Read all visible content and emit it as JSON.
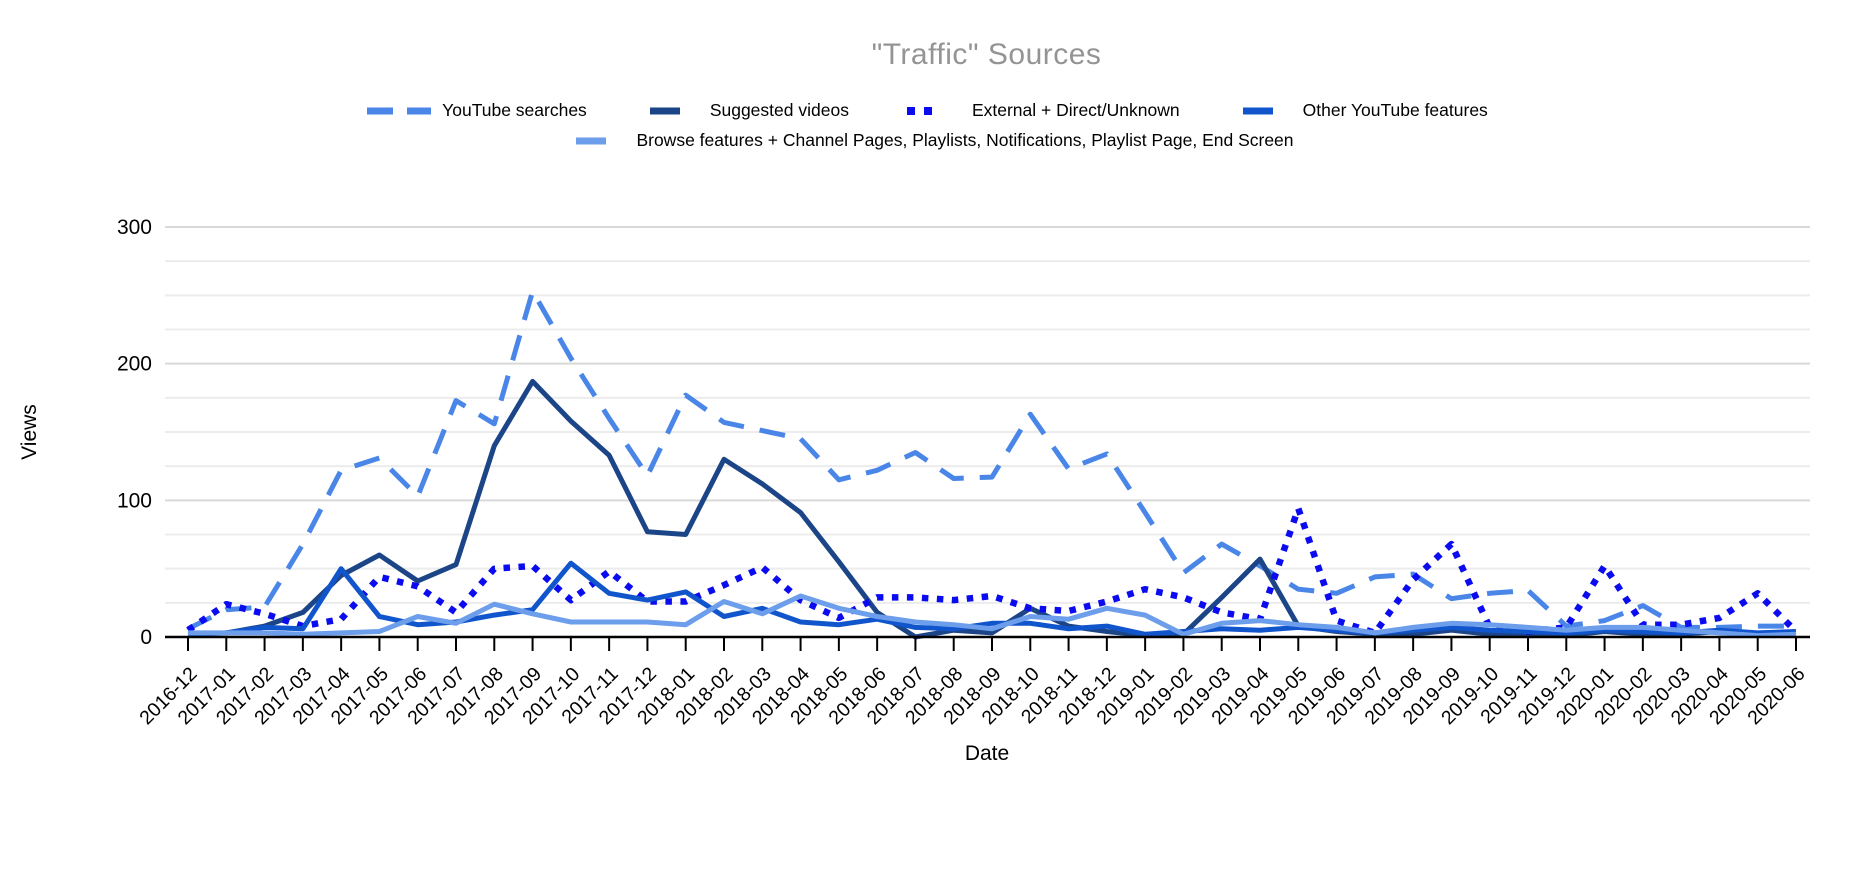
{
  "title": "\"Traffic\" Sources",
  "axes": {
    "x_label": "Date",
    "y_label": "Views",
    "y_ticks": [
      0,
      100,
      200,
      300
    ],
    "y_minor_step": 25,
    "y_max": 300
  },
  "colors": {
    "title_gray": "#949494",
    "major_grid": "#d9d9d9",
    "minor_grid": "#ececec",
    "axis_black": "#000000"
  },
  "chart_data": {
    "type": "line",
    "title": "\"Traffic\" Sources",
    "xlabel": "Date",
    "ylabel": "Views",
    "ylim": [
      0,
      300
    ],
    "grid": true,
    "legend_position": "top",
    "categories": [
      "2016-12",
      "2017-01",
      "2017-02",
      "2017-03",
      "2017-04",
      "2017-05",
      "2017-06",
      "2017-07",
      "2017-08",
      "2017-09",
      "2017-10",
      "2017-11",
      "2017-12",
      "2018-01",
      "2018-02",
      "2018-03",
      "2018-04",
      "2018-05",
      "2018-06",
      "2018-07",
      "2018-08",
      "2018-09",
      "2018-10",
      "2018-11",
      "2018-12",
      "2019-01",
      "2019-02",
      "2019-03",
      "2019-04",
      "2019-05",
      "2019-06",
      "2019-07",
      "2019-08",
      "2019-09",
      "2019-10",
      "2019-11",
      "2019-12",
      "2020-01",
      "2020-02",
      "2020-03",
      "2020-04",
      "2020-05",
      "2020-06"
    ],
    "series": [
      {
        "name": "YouTube searches",
        "color": "#4a86e8",
        "style": "dashed",
        "values": [
          6,
          20,
          22,
          68,
          122,
          131,
          103,
          173,
          156,
          253,
          204,
          160,
          118,
          177,
          157,
          151,
          145,
          115,
          122,
          135,
          116,
          117,
          163,
          123,
          134,
          91,
          47,
          68,
          52,
          35,
          32,
          44,
          46,
          28,
          32,
          34,
          8,
          12,
          23,
          7,
          7,
          8,
          8
        ]
      },
      {
        "name": "Suggested videos",
        "color": "#1c4587",
        "style": "solid",
        "values": [
          2,
          3,
          8,
          18,
          45,
          60,
          41,
          53,
          140,
          187,
          158,
          133,
          77,
          75,
          130,
          112,
          91,
          55,
          18,
          0,
          5,
          3,
          21,
          8,
          4,
          1,
          2,
          29,
          57,
          8,
          4,
          2,
          2,
          5,
          2,
          2,
          1,
          4,
          2,
          2,
          4,
          2,
          2
        ]
      },
      {
        "name": "External + Direct/Unknown",
        "color": "#0b0bf0",
        "style": "dotted",
        "values": [
          5,
          24,
          17,
          8,
          13,
          44,
          37,
          18,
          50,
          52,
          27,
          48,
          26,
          26,
          38,
          51,
          27,
          14,
          29,
          29,
          27,
          30,
          21,
          19,
          26,
          35,
          29,
          18,
          13,
          94,
          12,
          3,
          42,
          68,
          7,
          4,
          7,
          52,
          9,
          9,
          14,
          32,
          4
        ]
      },
      {
        "name": "Other YouTube features",
        "color": "#1155cc",
        "style": "solid",
        "values": [
          2,
          3,
          7,
          6,
          50,
          15,
          9,
          11,
          16,
          20,
          54,
          32,
          27,
          33,
          15,
          21,
          11,
          9,
          13,
          7,
          6,
          10,
          10,
          6,
          8,
          2,
          4,
          6,
          5,
          7,
          5,
          3,
          5,
          7,
          5,
          4,
          3,
          5,
          4,
          3,
          5,
          3,
          4
        ]
      },
      {
        "name": "Browse features + Channel Pages, Playlists, Notifications, Playlist Page, End Screen",
        "color": "#6d9eeb",
        "style": "solid",
        "values": [
          3,
          3,
          3,
          2,
          3,
          4,
          15,
          10,
          24,
          17,
          11,
          11,
          11,
          9,
          26,
          17,
          30,
          21,
          15,
          11,
          9,
          6,
          15,
          13,
          21,
          16,
          2,
          10,
          12,
          9,
          7,
          3,
          7,
          10,
          9,
          7,
          5,
          7,
          7,
          5,
          3,
          1,
          2
        ]
      }
    ]
  }
}
